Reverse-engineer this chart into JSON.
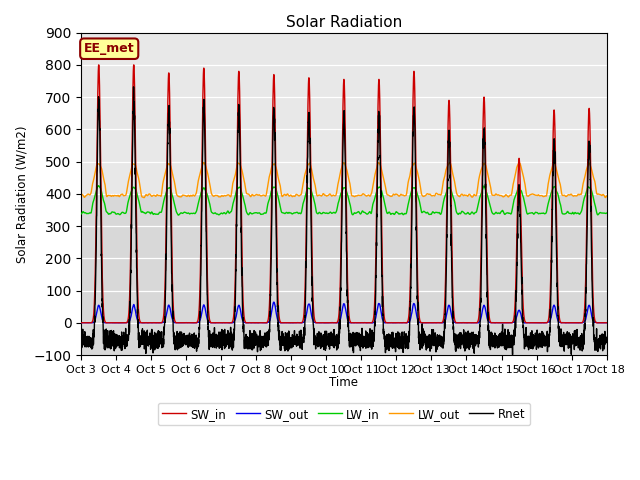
{
  "title": "Solar Radiation",
  "ylabel": "Solar Radiation (W/m2)",
  "xlabel": "Time",
  "ylim": [
    -100,
    900
  ],
  "xtick_labels": [
    "Oct 3",
    "Oct 4",
    "Oct 5",
    "Oct 6",
    "Oct 7",
    "Oct 8",
    "Oct 9",
    "Oct 10",
    "Oct 11",
    "Oct 12",
    "Oct 13",
    "Oct 14",
    "Oct 15",
    "Oct 16",
    "Oct 17",
    "Oct 18"
  ],
  "legend_entries": [
    "SW_in",
    "SW_out",
    "LW_in",
    "LW_out",
    "Rnet"
  ],
  "colors": {
    "SW_in": "#cc0000",
    "SW_out": "#0000ee",
    "LW_in": "#00cc00",
    "LW_out": "#ff9900",
    "Rnet": "#000000"
  },
  "annotation_text": "EE_met",
  "annotation_bg": "#ffff99",
  "annotation_border": "#8b0000",
  "plot_bg": "#d8d8d8",
  "upper_bg": "#e8e8e8",
  "fig_bg": "#ffffff",
  "n_days": 15,
  "points_per_day": 288,
  "sw_in_peaks": [
    800,
    800,
    775,
    790,
    780,
    770,
    760,
    755,
    755,
    780,
    690,
    700,
    510,
    660,
    665
  ],
  "sw_out_peaks": [
    55,
    55,
    55,
    55,
    55,
    65,
    60,
    60,
    60,
    60,
    55,
    55,
    40,
    55,
    55
  ],
  "lw_in_base": 340,
  "lw_out_base": 395,
  "rnet_night": -75
}
